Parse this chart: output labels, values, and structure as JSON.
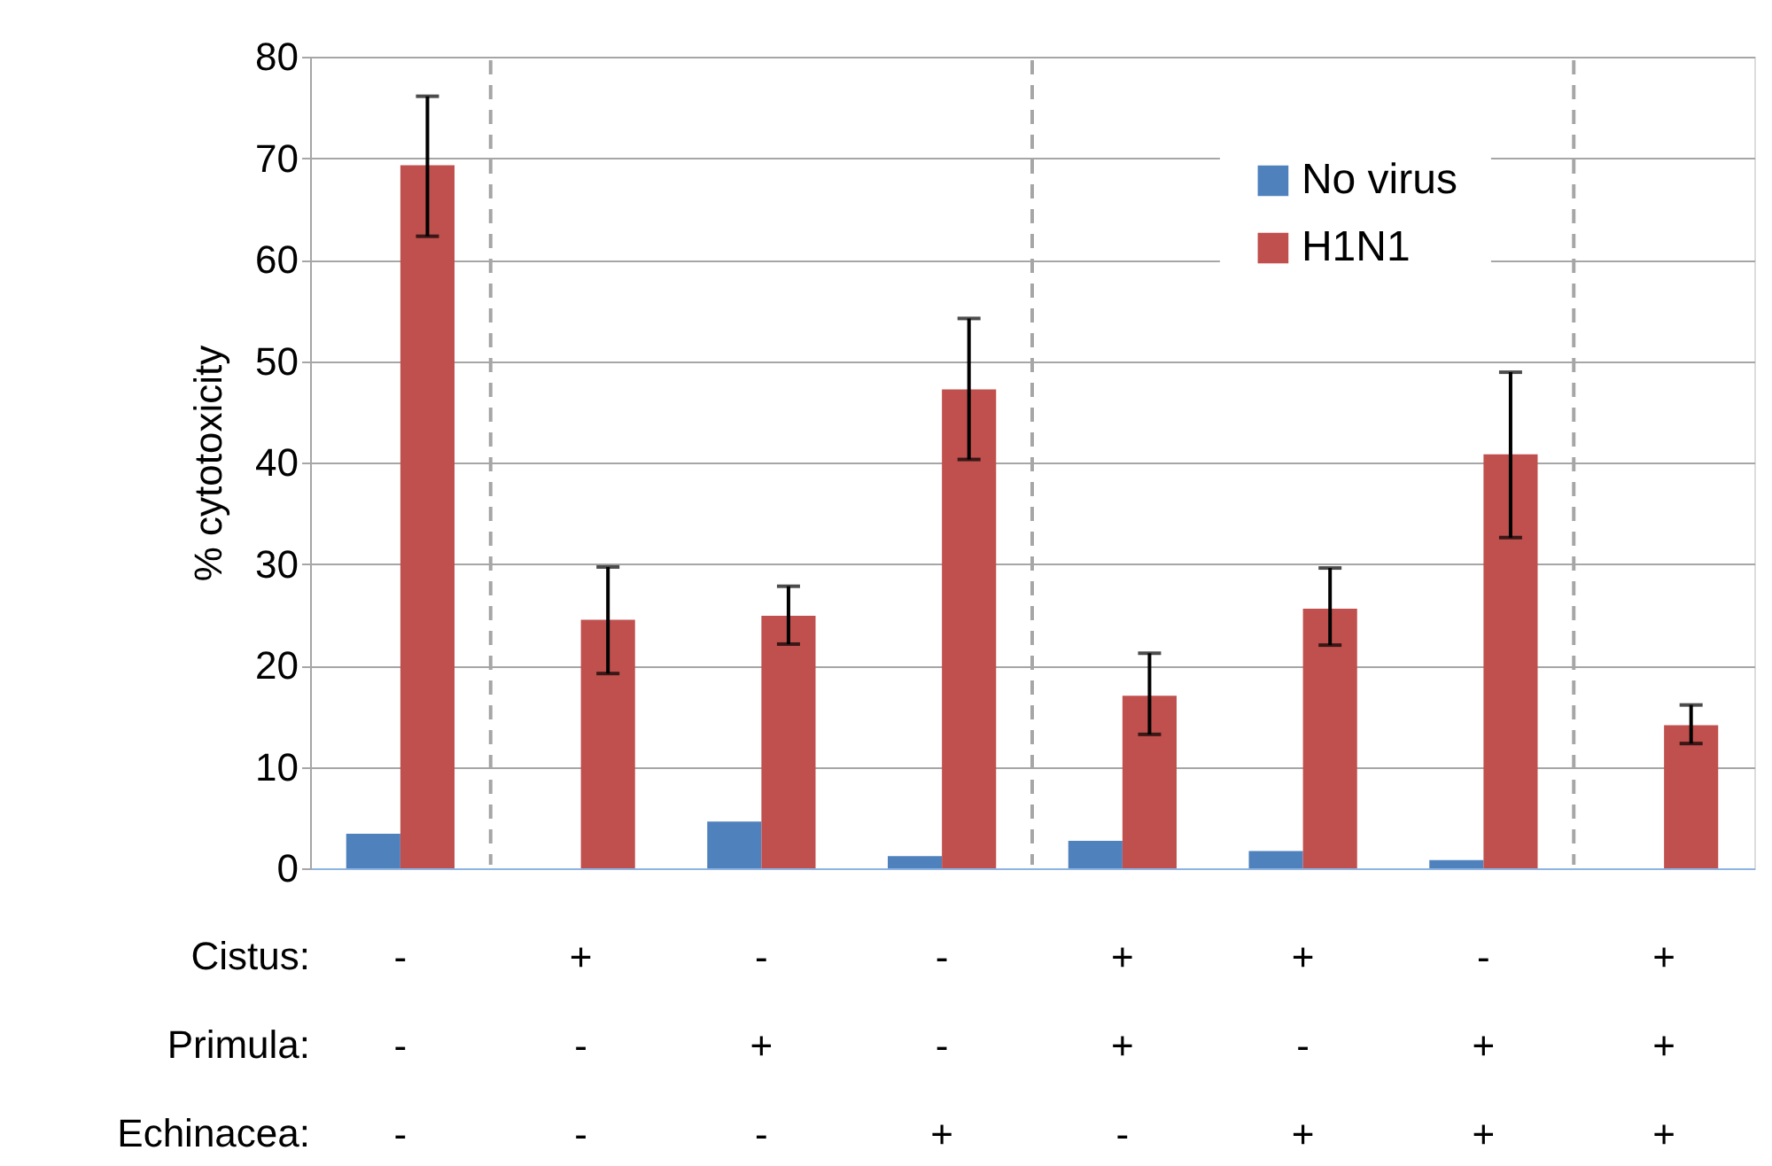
{
  "chart_data": {
    "type": "bar",
    "ylabel": "% cytotoxicity",
    "categories": [
      "-\n-\n-",
      "+\n-\n-",
      "-\n+\n-",
      "-\n-\n+",
      "+\n+\n-",
      "+\n-\n+",
      "-\n+\n+",
      "+\n+\n+"
    ],
    "series": [
      {
        "name": "No virus",
        "color": "#4f81bd",
        "values": [
          3.4,
          0,
          4.6,
          1.2,
          2.7,
          1.7,
          0.8,
          0
        ]
      },
      {
        "name": "H1N1",
        "color": "#c0504d",
        "values": [
          69.3,
          24.5,
          24.9,
          47.2,
          17.0,
          25.6,
          40.8,
          14.1
        ],
        "errors": [
          [
            62.3,
            76.1
          ],
          [
            19.2,
            29.7
          ],
          [
            22.1,
            27.8
          ],
          [
            40.3,
            54.2
          ],
          [
            13.2,
            21.2
          ],
          [
            22.0,
            29.6
          ],
          [
            32.6,
            48.9
          ],
          [
            12.3,
            16.1
          ]
        ]
      }
    ],
    "annotations": [
      "Cistus:",
      "Primula:",
      "Echinacea:"
    ],
    "ylim": [
      0,
      80
    ],
    "yticks": [
      0,
      10,
      20,
      30,
      40,
      50,
      60,
      70,
      80
    ],
    "grid": "y",
    "legend": "top right"
  }
}
